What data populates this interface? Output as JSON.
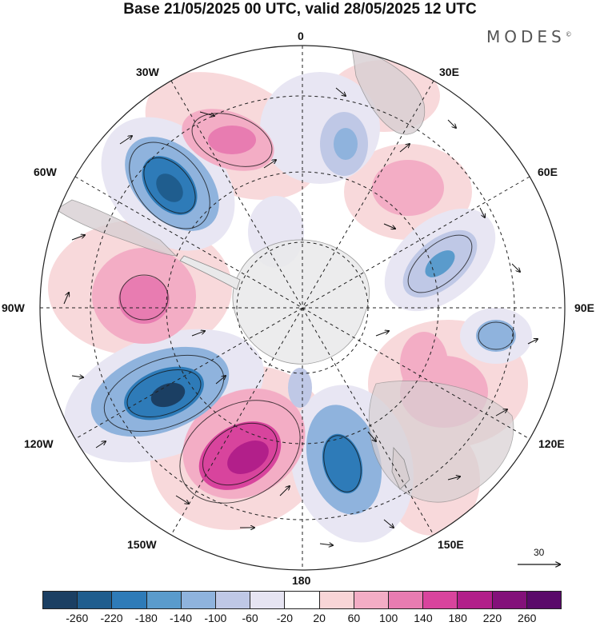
{
  "title": "Base 21/05/2025 00 UTC, valid 28/05/2025 12 UTC",
  "brand": "MODES",
  "brand_mark": "©",
  "longitude_labels": {
    "lon_0": "0",
    "lon_30e": "30E",
    "lon_60e": "60E",
    "lon_90e": "90E",
    "lon_120e": "120E",
    "lon_150e": "150E",
    "lon_180": "180",
    "lon_150w": "150W",
    "lon_120w": "120W",
    "lon_90w": "90W",
    "lon_60w": "60W",
    "lon_30w": "30W"
  },
  "reference_vector": {
    "value": "30",
    "icon": "right-arrow-icon"
  },
  "colorbar": {
    "ticks": [
      "-260",
      "-220",
      "-180",
      "-140",
      "-100",
      "-60",
      "-20",
      "20",
      "60",
      "100",
      "140",
      "180",
      "220",
      "260"
    ],
    "colors": [
      "#1b3f63",
      "#1f5d8e",
      "#2e7bb8",
      "#5a9bcc",
      "#8fb3dd",
      "#bfc8e6",
      "#e6e4f2",
      "#ffffff",
      "#f8d5d7",
      "#f3adc5",
      "#e87cb1",
      "#d8449d",
      "#b21f8a",
      "#83117a",
      "#5a0a6a"
    ]
  },
  "anomaly_fields": [
    {
      "level": "-180",
      "color": "#2e7bb8"
    },
    {
      "level": "-140",
      "color": "#5a9bcc"
    },
    {
      "level": "-60",
      "color": "#bfc8e6"
    },
    {
      "level": "60",
      "color": "#f3adc5"
    },
    {
      "level": "140",
      "color": "#e87cb1"
    },
    {
      "level": "180",
      "color": "#d8449d"
    }
  ]
}
